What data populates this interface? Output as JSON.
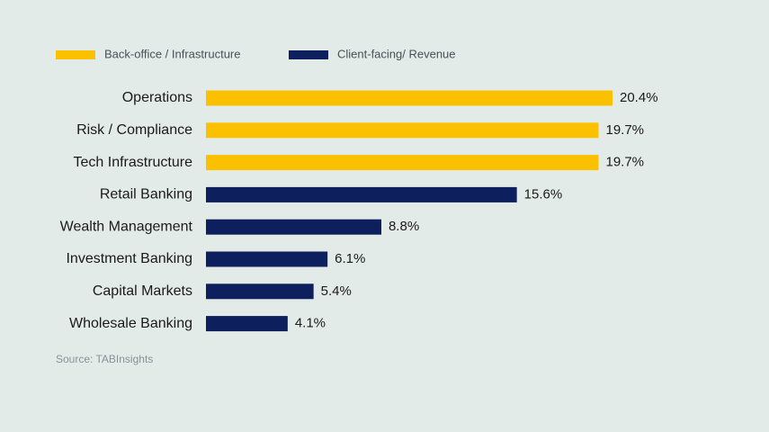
{
  "colors": {
    "background": "#e3ebe9",
    "back_office": "#fbc100",
    "client_facing": "#0d1f5c",
    "label_text": "#1a1a1a",
    "legend_text": "#4a4f55",
    "source_text": "#8a9096"
  },
  "source": "Source: TABInsights",
  "chart_data": {
    "type": "bar",
    "orientation": "horizontal",
    "legend_position": "top-left",
    "grid": false,
    "xlim": [
      0,
      20.4
    ],
    "value_suffix": "%",
    "series": [
      {
        "name": "Back-office / Infrastructure",
        "color_key": "back_office"
      },
      {
        "name": "Client-facing/ Revenue",
        "color_key": "client_facing"
      }
    ],
    "categories": [
      "Operations",
      "Risk / Compliance",
      "Tech Infrastructure",
      "Retail Banking",
      "Wealth Management",
      "Investment Banking",
      "Capital Markets",
      "Wholesale Banking"
    ],
    "values": [
      20.4,
      19.7,
      19.7,
      15.6,
      8.8,
      6.1,
      5.4,
      4.1
    ],
    "series_index": [
      0,
      0,
      0,
      1,
      1,
      1,
      1,
      1
    ]
  }
}
